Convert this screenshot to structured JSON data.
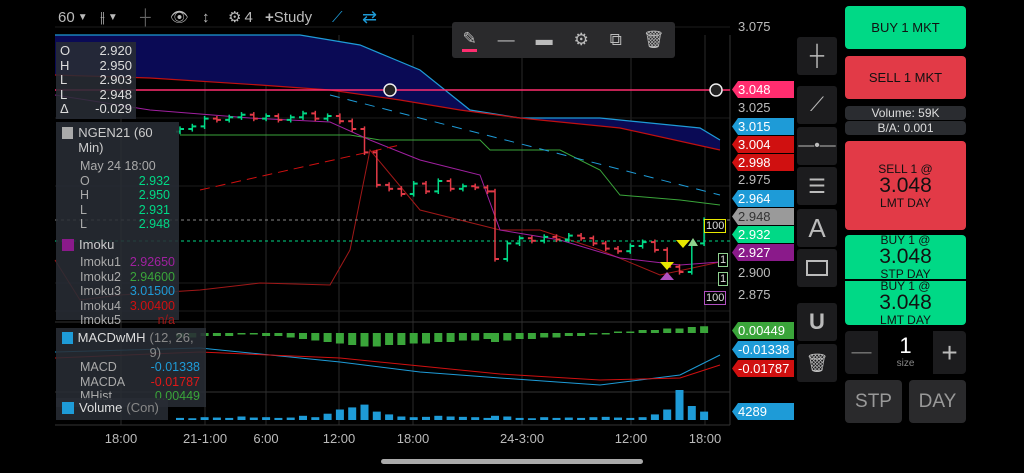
{
  "toolbar": {
    "interval": "60",
    "indicator_count": "4",
    "study_label": "Study",
    "icons": [
      "chart-type-icon",
      "crosshair-icon",
      "eye-off-icon",
      "vertical-resize-icon",
      "gear-icon",
      "plus-icon",
      "draw-line-icon",
      "swap-icon"
    ]
  },
  "drawing_toolbar": {
    "icons": [
      "pencil-icon",
      "line-style-icon",
      "line-width-icon",
      "gear-icon",
      "duplicate-icon",
      "trash-icon"
    ],
    "color": "#ff2d6f"
  },
  "ohlc_box": {
    "rows": [
      {
        "k": "O",
        "v": "2.920"
      },
      {
        "k": "H",
        "v": "2.950"
      },
      {
        "k": "L",
        "v": "2.903"
      },
      {
        "k": "L",
        "v": "2.948"
      },
      {
        "k": "Δ",
        "v": "-0.029"
      }
    ]
  },
  "legend": {
    "symbol": "NGEN21 (60 Min)",
    "date": "May 24 18:00",
    "ohlc": [
      {
        "k": "O",
        "v": "2.932"
      },
      {
        "k": "H",
        "v": "2.950"
      },
      {
        "k": "L",
        "v": "2.931"
      },
      {
        "k": "L",
        "v": "2.948"
      }
    ],
    "ichimoku": {
      "name": "Imoku",
      "rows": [
        {
          "k": "Imoku1",
          "v": "2.92650",
          "c": "#a020a0"
        },
        {
          "k": "Imoku2",
          "v": "2.94600",
          "c": "#3aa53a"
        },
        {
          "k": "Imoku3",
          "v": "3.01500",
          "c": "#1e9bd7"
        },
        {
          "k": "Imoku4",
          "v": "3.00400",
          "c": "#d01010"
        },
        {
          "k": "Imoku5",
          "v": "n/a",
          "c": "#a01818"
        }
      ]
    },
    "macd": {
      "name": "MACDwMH",
      "params": "(12, 26, 9)",
      "rows": [
        {
          "k": "MACD",
          "v": "-0.01338",
          "c": "#1e9bd7"
        },
        {
          "k": "MACDA",
          "v": "-0.01787",
          "c": "#e01818"
        },
        {
          "k": "MHist",
          "v": "0.00449",
          "c": "#3aa53a"
        }
      ]
    },
    "volume": {
      "name": "Volume",
      "params": "(Con)"
    }
  },
  "price_axis": {
    "ticks": [
      "3.075",
      "3.025",
      "2.975",
      "2.900",
      "2.875"
    ],
    "labels": [
      {
        "v": "3.048",
        "c": "#ff2d6f"
      },
      {
        "v": "3.015",
        "c": "#1e9bd7"
      },
      {
        "v": "3.004",
        "c": "#d01010"
      },
      {
        "v": "2.998",
        "c": "#d01010"
      },
      {
        "v": "2.964",
        "c": "#1e9bd7"
      },
      {
        "v": "2.948",
        "c": "#9a9a9a"
      },
      {
        "v": "2.932",
        "c": "#00d986"
      },
      {
        "v": "2.927",
        "c": "#8a1a8a"
      },
      {
        "v": "0.00449",
        "c": "#3aa53a"
      },
      {
        "v": "-0.01338",
        "c": "#1e9bd7"
      },
      {
        "v": "-0.01787",
        "c": "#d01010"
      },
      {
        "v": "4289",
        "c": "#1e9bd7"
      }
    ]
  },
  "time_axis": [
    "18:00",
    "21-1:00",
    "6:00",
    "12:00",
    "18:00",
    "24-3:00",
    "12:00",
    "18:00"
  ],
  "orders": [
    {
      "qty": "100",
      "c": "#e8e800"
    },
    {
      "qty": "1",
      "c": "#8fd18f"
    },
    {
      "qty": "1",
      "c": "#8fd18f"
    },
    {
      "qty": "100",
      "c": "#b050c0"
    }
  ],
  "right_tools": [
    "crosshair-icon",
    "trendline-icon",
    "horizontal-line-icon",
    "fib-lines-icon",
    "text-icon",
    "rectangle-icon",
    "magnet-icon",
    "trash-icon"
  ],
  "right_tools_text": "A",
  "trade_panel": {
    "buy_mkt": "BUY 1 MKT",
    "sell_mkt": "SELL 1 MKT",
    "volume": "Volume: 59K",
    "ba": "B/A: 0.001",
    "sell_lmt": {
      "top": "SELL 1 @",
      "price": "3.048",
      "bottom": "LMT DAY"
    },
    "buy_stp": {
      "top": "BUY 1 @",
      "price": "3.048",
      "bottom": "STP DAY"
    },
    "buy_lmt": {
      "top": "BUY 1 @",
      "price": "3.048",
      "bottom": "LMT DAY"
    },
    "size": "1",
    "size_label": "size",
    "minus": "—",
    "plus": "+",
    "order_type": "STP",
    "tif": "DAY"
  },
  "chart_data": {
    "type": "candlestick",
    "symbol": "NGEN21",
    "interval": "60 Min",
    "alert_line": 3.048,
    "closes": [
      3.018,
      3.02,
      3.026,
      3.025,
      3.027,
      3.029,
      3.026,
      3.028,
      3.025,
      3.027,
      3.03,
      3.026,
      3.028,
      3.024,
      3.018,
      3.0,
      2.975,
      2.972,
      2.968,
      2.976,
      2.97,
      2.978,
      2.972,
      2.974,
      2.973,
      2.97,
      2.918,
      2.93,
      2.934,
      2.932,
      2.935,
      2.933,
      2.936,
      2.934,
      2.93,
      2.926,
      2.924,
      2.928,
      2.931,
      2.925,
      2.912,
      2.908,
      2.93,
      2.948
    ],
    "volume": [
      300,
      250,
      400,
      350,
      300,
      500,
      350,
      400,
      300,
      350,
      600,
      400,
      900,
      1500,
      1800,
      2200,
      1200,
      800,
      500,
      400,
      450,
      600,
      500,
      450,
      400,
      300,
      600,
      500,
      300,
      250,
      400,
      300,
      350,
      300,
      400,
      450,
      350,
      300,
      400,
      800,
      1500,
      4289,
      2000,
      1200
    ],
    "macd_hist": [
      -0.003,
      -0.003,
      -0.002,
      -0.002,
      -0.002,
      -0.001,
      -0.001,
      -0.002,
      -0.002,
      -0.003,
      -0.004,
      -0.005,
      -0.006,
      -0.007,
      -0.008,
      -0.009,
      -0.009,
      -0.008,
      -0.008,
      -0.007,
      -0.007,
      -0.006,
      -0.006,
      -0.005,
      -0.005,
      -0.004,
      -0.006,
      -0.005,
      -0.004,
      -0.004,
      -0.003,
      -0.003,
      -0.002,
      -0.002,
      -0.001,
      -0.001,
      0.001,
      0.001,
      0.002,
      0.002,
      0.003,
      0.003,
      0.004,
      0.00449
    ]
  }
}
